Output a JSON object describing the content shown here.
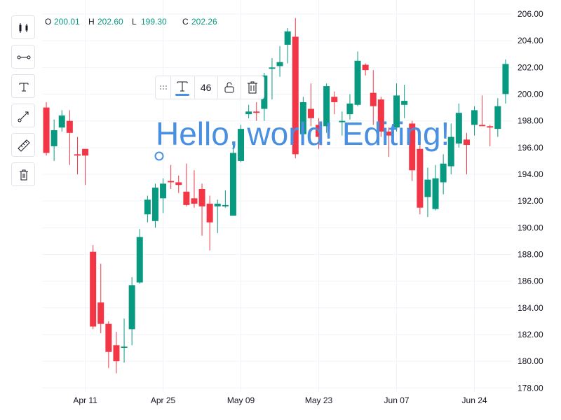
{
  "chart_data": {
    "type": "candlestick",
    "categories": [
      null,
      null,
      null,
      null,
      null,
      "Apr 11",
      null,
      null,
      null,
      null,
      null,
      null,
      null,
      null,
      null,
      "Apr 25",
      null,
      null,
      null,
      null,
      null,
      null,
      null,
      null,
      null,
      "May 09",
      null,
      null,
      null,
      null,
      null,
      null,
      null,
      null,
      null,
      "May 23",
      null,
      null,
      null,
      null,
      null,
      null,
      null,
      null,
      null,
      "Jun 07",
      null,
      null,
      null,
      null,
      null,
      null,
      null,
      null,
      null,
      "Jun 24",
      null,
      null,
      null,
      null
    ],
    "open": [
      199.0,
      196.1,
      197.5,
      198.0,
      195.5,
      195.9,
      188.2,
      184.4,
      182.8,
      181.2,
      181.0,
      182.4,
      185.9,
      191.0,
      190.5,
      192.2,
      193.5,
      193.4,
      192.7,
      192.2,
      192.9,
      191.8,
      191.6,
      191.6,
      190.9,
      195.0,
      198.5,
      198.7,
      198.9,
      201.9,
      202.1,
      203.7,
      204.3,
      197.0,
      198.9,
      197.7,
      197.6,
      199.8,
      197.9,
      198.5,
      199.2,
      202.2,
      200.1,
      199.6,
      197.2,
      197.5,
      199.2,
      197.8,
      195.9,
      192.3,
      191.4,
      193.4,
      194.6,
      196.3,
      196.6,
      197.7,
      197.7,
      197.6,
      197.4,
      200.01
    ],
    "high": [
      199.4,
      198.1,
      198.8,
      198.8,
      196.8,
      195.9,
      188.7,
      187.3,
      183.0,
      182.2,
      183.2,
      186.3,
      189.9,
      192.4,
      193.3,
      193.7,
      194.7,
      193.9,
      194.8,
      194.3,
      193.3,
      192.4,
      192.1,
      192.8,
      196.4,
      197.7,
      199.2,
      199.4,
      201.6,
      202.7,
      203.6,
      204.95,
      205.7,
      199.8,
      200.8,
      198.2,
      200.8,
      200.2,
      198.7,
      200.0,
      203.2,
      202.3,
      201.8,
      199.8,
      197.5,
      200.8,
      200.7,
      198.0,
      196.2,
      194.5,
      194.7,
      195.5,
      197.8,
      199.3,
      197.1,
      199.1,
      199.9,
      197.7,
      199.7,
      202.6
    ],
    "low": [
      195.4,
      195.0,
      197.2,
      194.7,
      194.0,
      193.2,
      182.4,
      182.1,
      179.5,
      179.1,
      179.9,
      181.2,
      185.8,
      190.4,
      190.0,
      191.1,
      192.9,
      192.6,
      191.6,
      191.5,
      189.4,
      188.3,
      189.6,
      191.5,
      190.9,
      194.9,
      198.2,
      198.0,
      198.0,
      199.6,
      201.3,
      202.3,
      195.2,
      196.8,
      197.6,
      195.9,
      197.1,
      198.5,
      196.9,
      198.1,
      199.1,
      201.4,
      197.7,
      196.8,
      195.3,
      197.2,
      198.2,
      193.5,
      191.0,
      190.8,
      191.3,
      192.5,
      194.0,
      196.0,
      194.0,
      196.9,
      197.6,
      196.1,
      196.8,
      199.3
    ],
    "close": [
      195.6,
      197.3,
      198.4,
      197.1,
      195.4,
      195.4,
      182.6,
      182.8,
      180.7,
      180.0,
      181.1,
      185.7,
      189.3,
      192.1,
      193.0,
      193.3,
      193.4,
      193.2,
      191.7,
      191.8,
      191.6,
      190.4,
      191.8,
      191.7,
      195.6,
      197.4,
      198.7,
      198.6,
      201.4,
      202.0,
      202.4,
      204.7,
      195.5,
      199.4,
      198.2,
      196.8,
      200.6,
      199.4,
      198.0,
      199.3,
      202.5,
      201.8,
      199.1,
      197.2,
      196.9,
      199.9,
      199.5,
      194.3,
      191.5,
      193.6,
      193.7,
      194.8,
      196.8,
      198.6,
      196.2,
      198.8,
      197.6,
      197.5,
      199.1,
      202.26
    ],
    "up_color": "#089981",
    "down_color": "#f23645",
    "ylim": [
      177.7,
      207.05
    ],
    "yticks": [
      {
        "value": 178,
        "label": "178.00"
      },
      {
        "value": 180,
        "label": "180.00"
      },
      {
        "value": 182,
        "label": "182.00"
      },
      {
        "value": 184,
        "label": "184.00"
      },
      {
        "value": 186,
        "label": "186.00"
      },
      {
        "value": 188,
        "label": "188.00"
      },
      {
        "value": 190,
        "label": "190.00"
      },
      {
        "value": 192,
        "label": "192.00"
      },
      {
        "value": 194,
        "label": "194.00"
      },
      {
        "value": 196,
        "label": "196.00"
      },
      {
        "value": 198,
        "label": "198.00"
      },
      {
        "value": 200,
        "label": "200.00"
      },
      {
        "value": 202,
        "label": "202.00"
      },
      {
        "value": 204,
        "label": "204.00"
      },
      {
        "value": 206,
        "label": "206.00"
      }
    ],
    "grid": true,
    "legend": {
      "labels": [
        "O",
        "H",
        "L",
        "C"
      ],
      "values": [
        "200.01",
        "202.60",
        "199.30",
        "202.26"
      ]
    },
    "annotation": {
      "text": "Hello, world! Editing!",
      "font_size": 46,
      "color": "#4a90e2"
    }
  }
}
